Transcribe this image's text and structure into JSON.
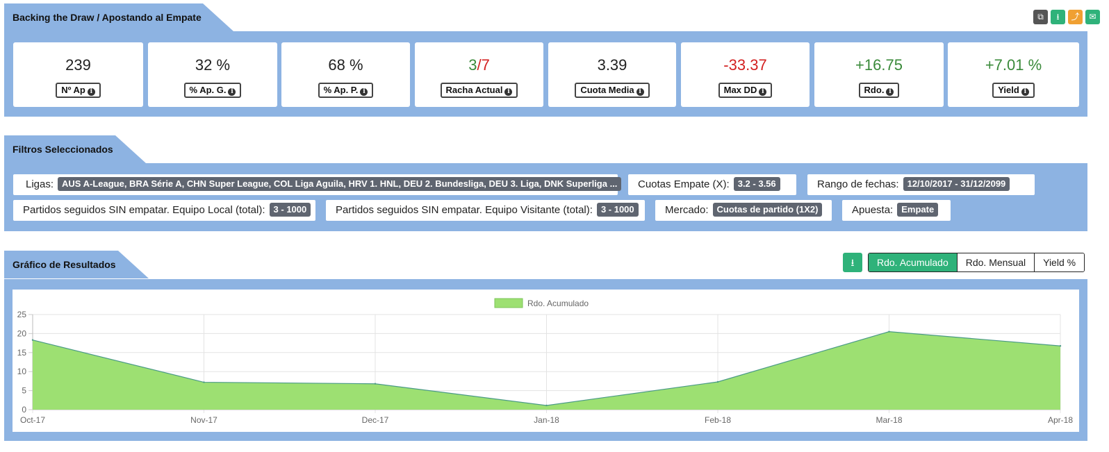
{
  "header": {
    "title": "Backing the Draw / Apostando al Empate",
    "icons": [
      "copy-icon",
      "download-icon",
      "share-icon",
      "email-icon"
    ]
  },
  "stats": [
    {
      "value": "239",
      "label": "Nº Ap"
    },
    {
      "value": "32 %",
      "label": "% Ap. G."
    },
    {
      "value": "68 %",
      "label": "% Ap. P."
    },
    {
      "value_a": "3",
      "value_sep": "/",
      "value_b": "7",
      "label": "Racha Actual"
    },
    {
      "value": "3.39",
      "label": "Cuota Media"
    },
    {
      "value": "-33.37",
      "label": "Max DD"
    },
    {
      "value": "+16.75",
      "label": "Rdo."
    },
    {
      "value": "+7.01 %",
      "label": "Yield"
    }
  ],
  "filters": {
    "title": "Filtros Seleccionados",
    "items": [
      {
        "label": "Ligas:",
        "value": "AUS A-League, BRA Série A, CHN Super League, COL Liga Aguila, HRV 1. HNL, DEU 2. Bundesliga, DEU 3. Liga, DNK Superliga ..."
      },
      {
        "label": "Cuotas Empate (X):",
        "value": "3.2 - 3.56"
      },
      {
        "label": "Rango de fechas:",
        "value": "12/10/2017 - 31/12/2099"
      },
      {
        "label": "Partidos seguidos SIN empatar. Equipo Local (total):",
        "value": "3 - 1000"
      },
      {
        "label": "Partidos seguidos SIN empatar. Equipo Visitante (total):",
        "value": "3 - 1000"
      },
      {
        "label": "Mercado:",
        "value": "Cuotas de partido (1X2)"
      },
      {
        "label": "Apuesta:",
        "value": "Empate"
      }
    ]
  },
  "results": {
    "title": "Gráfico de Resultados",
    "download_icon": "download-icon",
    "tabs": [
      "Rdo. Acumulado",
      "Rdo. Mensual",
      "Yield %"
    ],
    "active_tab": "Rdo. Acumulado"
  },
  "colors": {
    "panel": "#8db3e2",
    "accent_green": "#2fb27a",
    "area_fill": "#9de072",
    "area_line": "#4a9a86",
    "positive": "#3a8a3a",
    "negative": "#d32020"
  },
  "chart_data": {
    "type": "area",
    "x": [
      "Oct-17",
      "Nov-17",
      "Dec-17",
      "Jan-18",
      "Feb-18",
      "Mar-18",
      "Apr-18"
    ],
    "series": [
      {
        "name": "Rdo. Acumulado",
        "values": [
          18.3,
          7.2,
          6.8,
          1.1,
          7.3,
          20.5,
          16.75
        ]
      }
    ],
    "yticks": [
      0,
      5,
      10,
      15,
      20,
      25
    ],
    "ylim": [
      0,
      25
    ],
    "grid": true,
    "legend": "top-center"
  }
}
